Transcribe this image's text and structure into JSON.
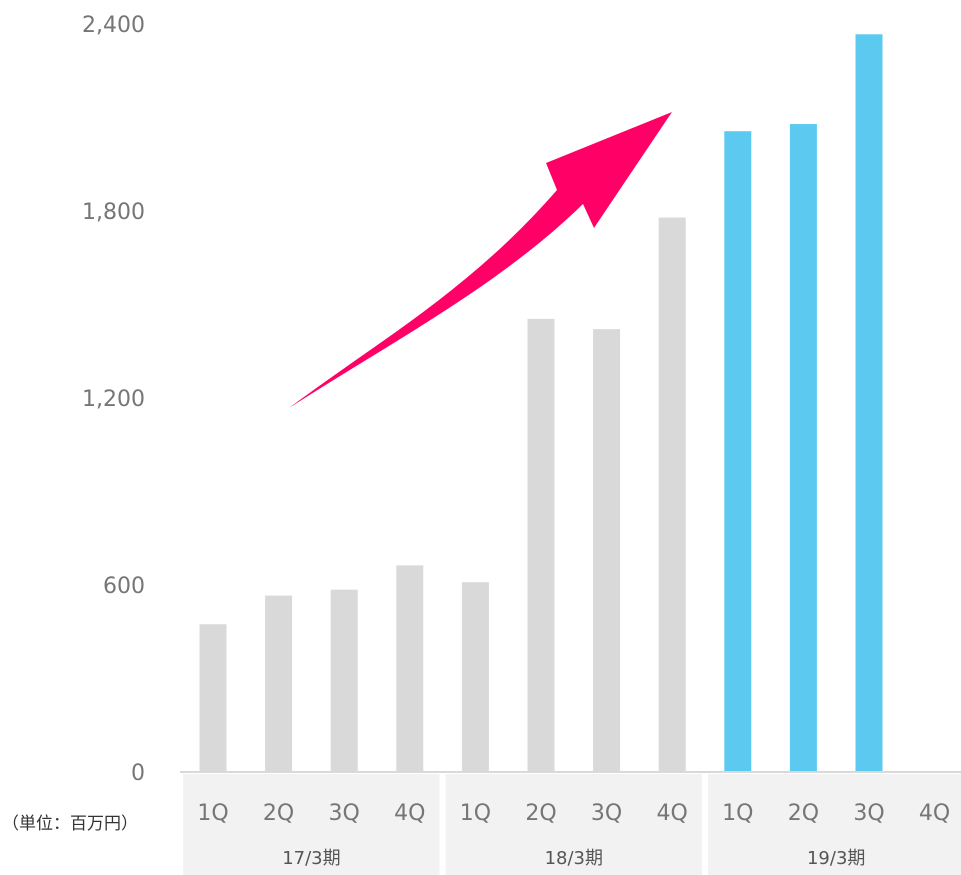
{
  "chart_data": {
    "type": "bar",
    "categories": [
      "1Q",
      "2Q",
      "3Q",
      "4Q",
      "1Q",
      "2Q",
      "3Q",
      "4Q",
      "1Q",
      "2Q",
      "3Q",
      "4Q"
    ],
    "groups": [
      {
        "label": "17/3期",
        "start": 0,
        "end": 3
      },
      {
        "label": "18/3期",
        "start": 4,
        "end": 7
      },
      {
        "label": "19/3期",
        "start": 8,
        "end": 11
      }
    ],
    "values": [
      474,
      566,
      585,
      663,
      609,
      1454,
      1421,
      1779,
      2056,
      2079,
      2367,
      null
    ],
    "bar_colors": [
      "#d9d9d9",
      "#d9d9d9",
      "#d9d9d9",
      "#d9d9d9",
      "#d9d9d9",
      "#d9d9d9",
      "#d9d9d9",
      "#d9d9d9",
      "#5bc9f0",
      "#5bc9f0",
      "#5bc9f0",
      "#5bc9f0"
    ],
    "yticks": [
      0,
      600,
      1200,
      1800,
      2400
    ],
    "ytick_labels": [
      "0",
      "600",
      "1,200",
      "1,800",
      "2,400"
    ],
    "ylim": [
      0,
      2400
    ],
    "unit_label": "（単位：百万円）",
    "annotation": {
      "type": "arrow",
      "color": "#ff0066",
      "direction": "up-right"
    },
    "grid": false
  }
}
